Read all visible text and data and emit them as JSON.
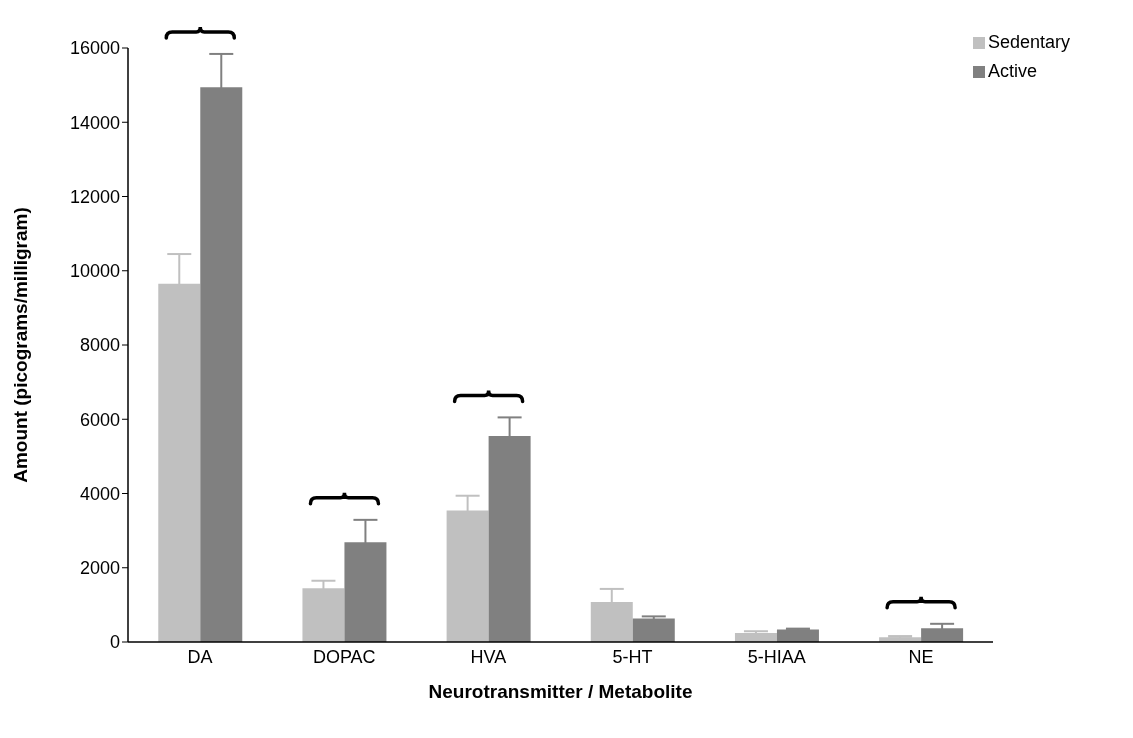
{
  "chart_data": {
    "type": "bar",
    "xlabel": "Neurotransmitter / Metabolite",
    "ylabel": "Amount (picograms/milligram)",
    "categories": [
      "DA",
      "DOPAC",
      "HVA",
      "5-HT",
      "5-HIAA",
      "NE"
    ],
    "series": [
      {
        "name": "Sedentary",
        "color": "#c0c0c0",
        "values": [
          9650,
          1450,
          3540,
          1080,
          240,
          130
        ],
        "errors": [
          800,
          200,
          400,
          350,
          50,
          30
        ]
      },
      {
        "name": "Active",
        "color": "#808080",
        "values": [
          14940,
          2690,
          5550,
          630,
          340,
          370
        ],
        "errors": [
          900,
          600,
          500,
          60,
          20,
          120
        ]
      }
    ],
    "ylim": [
      0,
      16000
    ],
    "yticks": [
      0,
      2000,
      4000,
      6000,
      8000,
      10000,
      12000,
      14000,
      16000
    ],
    "grid": false,
    "legend": "top right"
  }
}
